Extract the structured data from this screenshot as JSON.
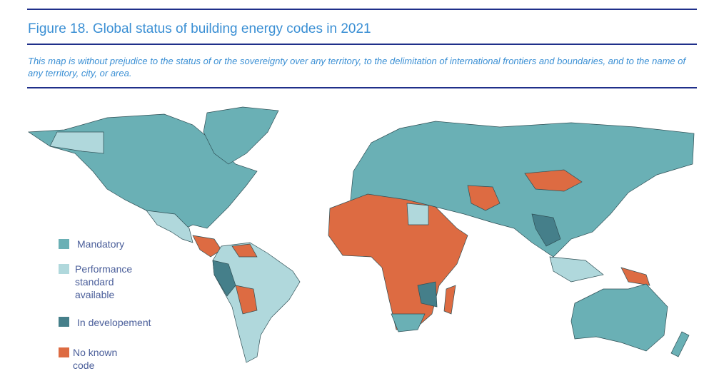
{
  "header": {
    "title": "Figure 18. Global status of building energy codes in 2021",
    "disclaimer": "This map is without prejudice to the status of or the sovereignty over any territory, to the delimitation of international frontiers and boundaries, and to the name of any territory, city, or area."
  },
  "legend": [
    {
      "label": "Mandatory",
      "color": "#6ab0b5"
    },
    {
      "label": "Performance standard available",
      "color": "#b0d8dc"
    },
    {
      "label": "In developement",
      "color": "#457f8a"
    },
    {
      "label": "No known code",
      "color": "#dd6b42"
    }
  ]
}
